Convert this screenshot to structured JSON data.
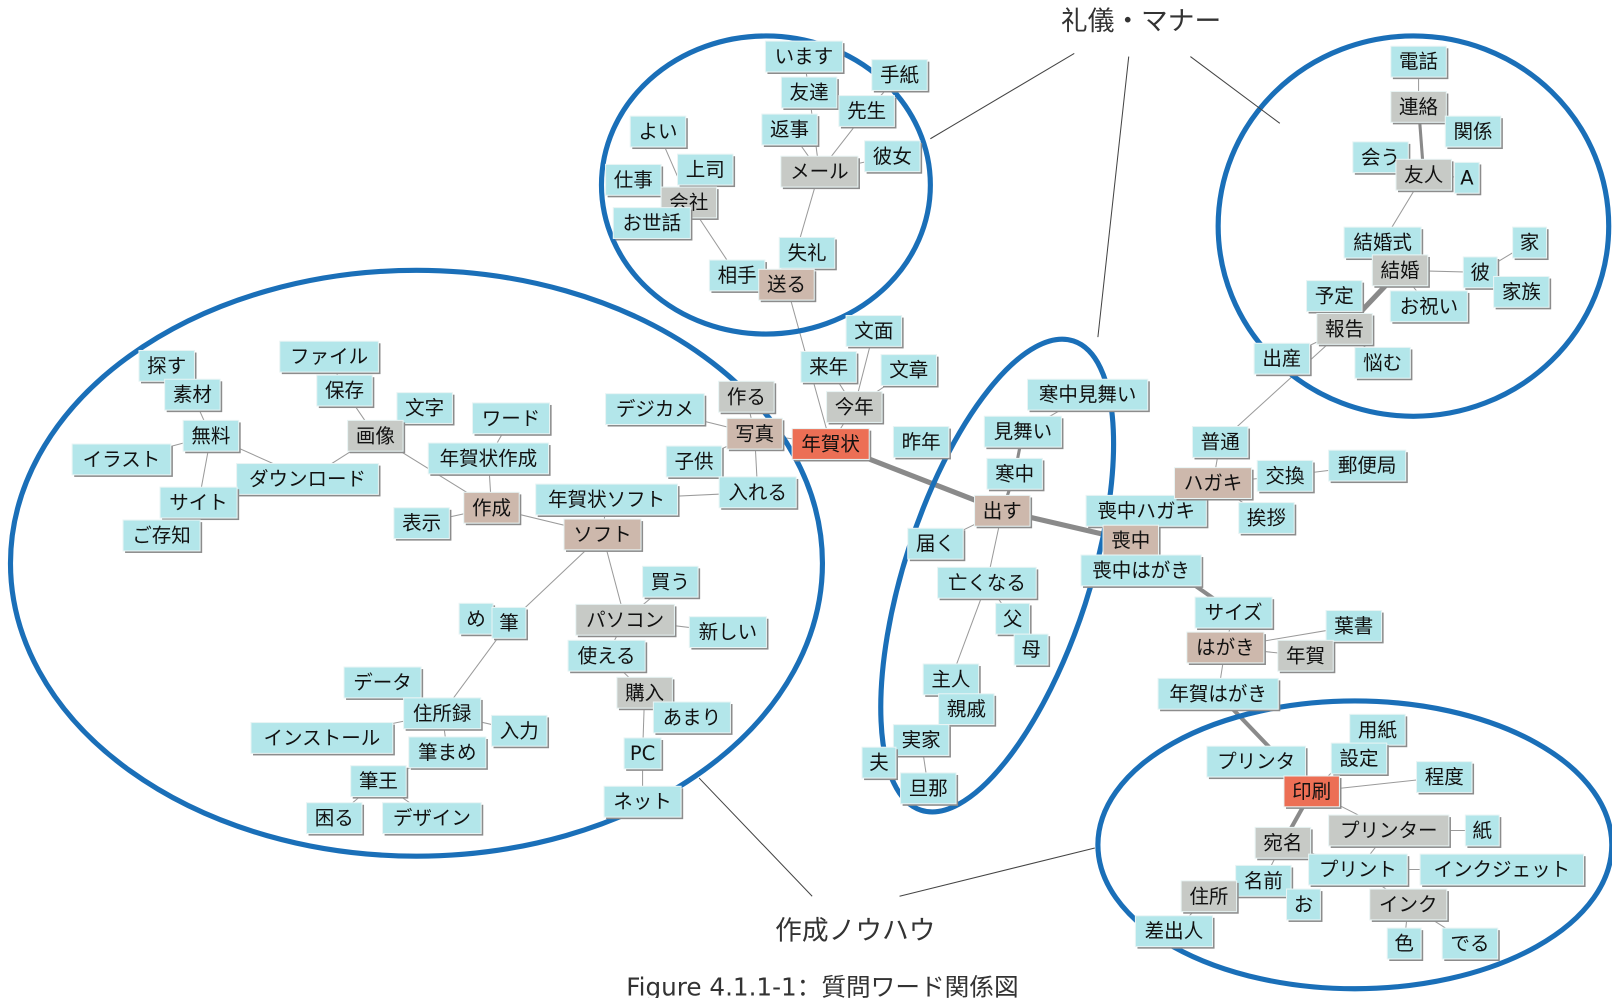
{
  "nodes": [
    {
      "label": "います"
    },
    {
      "label": "手紙"
    },
    {
      "label": "友達"
    },
    {
      "label": "先生"
    },
    {
      "label": "返事"
    },
    {
      "label": "よい"
    },
    {
      "label": "彼女"
    },
    {
      "label": "上司"
    },
    {
      "label": "メール"
    },
    {
      "label": "仕事"
    },
    {
      "label": "会社"
    },
    {
      "label": "お世話"
    },
    {
      "label": "失礼"
    },
    {
      "label": "相手"
    },
    {
      "label": "送る"
    },
    {
      "label": "電話"
    },
    {
      "label": "連絡"
    },
    {
      "label": "関係"
    },
    {
      "label": "会う"
    },
    {
      "label": "友人"
    },
    {
      "label": "A"
    },
    {
      "label": "結婚式"
    },
    {
      "label": "家"
    },
    {
      "label": "結婚"
    },
    {
      "label": "彼"
    },
    {
      "label": "予定"
    },
    {
      "label": "家族"
    },
    {
      "label": "お祝い"
    },
    {
      "label": "報告"
    },
    {
      "label": "出産"
    },
    {
      "label": "悩む"
    },
    {
      "label": "文面"
    },
    {
      "label": "来年"
    },
    {
      "label": "文章"
    },
    {
      "label": "今年"
    },
    {
      "label": "作る"
    },
    {
      "label": "デジカメ"
    },
    {
      "label": "写真"
    },
    {
      "label": "年賀状"
    },
    {
      "label": "昨年"
    },
    {
      "label": "子供"
    },
    {
      "label": "入れる"
    },
    {
      "label": "寒中見舞い"
    },
    {
      "label": "見舞い"
    },
    {
      "label": "寒中"
    },
    {
      "label": "出す"
    },
    {
      "label": "喪中ハガキ"
    },
    {
      "label": "喪中"
    },
    {
      "label": "届く"
    },
    {
      "label": "喪中はがき"
    },
    {
      "label": "亡くなる"
    },
    {
      "label": "父"
    },
    {
      "label": "母"
    },
    {
      "label": "主人"
    },
    {
      "label": "親戚"
    },
    {
      "label": "実家"
    },
    {
      "label": "夫"
    },
    {
      "label": "旦那"
    },
    {
      "label": "普通"
    },
    {
      "label": "ハガキ"
    },
    {
      "label": "交換"
    },
    {
      "label": "郵便局"
    },
    {
      "label": "挨拶"
    },
    {
      "label": "サイズ"
    },
    {
      "label": "葉書"
    },
    {
      "label": "はがき"
    },
    {
      "label": "年賀"
    },
    {
      "label": "年賀はがき"
    },
    {
      "label": "用紙"
    },
    {
      "label": "プリンタ"
    },
    {
      "label": "設定"
    },
    {
      "label": "程度"
    },
    {
      "label": "印刷"
    },
    {
      "label": "プリンター"
    },
    {
      "label": "紙"
    },
    {
      "label": "宛名"
    },
    {
      "label": "プリント"
    },
    {
      "label": "インクジェット"
    },
    {
      "label": "名前"
    },
    {
      "label": "住所"
    },
    {
      "label": "お"
    },
    {
      "label": "インク"
    },
    {
      "label": "差出人"
    },
    {
      "label": "色"
    },
    {
      "label": "でる"
    },
    {
      "label": "探す"
    },
    {
      "label": "ファイル"
    },
    {
      "label": "素材"
    },
    {
      "label": "保存"
    },
    {
      "label": "文字"
    },
    {
      "label": "ワード"
    },
    {
      "label": "無料"
    },
    {
      "label": "画像"
    },
    {
      "label": "イラスト"
    },
    {
      "label": "年賀状作成"
    },
    {
      "label": "ダウンロード"
    },
    {
      "label": "サイト"
    },
    {
      "label": "年賀状ソフト"
    },
    {
      "label": "作成"
    },
    {
      "label": "表示"
    },
    {
      "label": "ご存知"
    },
    {
      "label": "ソフト"
    },
    {
      "label": "買う"
    },
    {
      "label": "め"
    },
    {
      "label": "筆"
    },
    {
      "label": "パソコン"
    },
    {
      "label": "新しい"
    },
    {
      "label": "使える"
    },
    {
      "label": "データ"
    },
    {
      "label": "購入"
    },
    {
      "label": "住所録"
    },
    {
      "label": "あまり"
    },
    {
      "label": "入力"
    },
    {
      "label": "インストール"
    },
    {
      "label": "筆まめ"
    },
    {
      "label": "PC"
    },
    {
      "label": "筆王"
    },
    {
      "label": "ネット"
    },
    {
      "label": "困る"
    },
    {
      "label": "デザイン"
    }
  ],
  "annotations": [
    {
      "text": "礼儀・マナー"
    },
    {
      "text": "作成ノウハウ"
    }
  ],
  "caption": "Figure 4.1.1-1：質問ワード関係図"
}
